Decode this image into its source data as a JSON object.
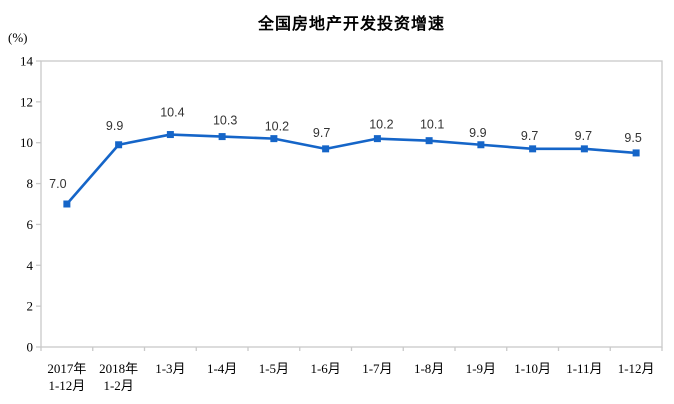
{
  "chart_data": {
    "type": "line",
    "title": "全国房地产开发投资增速",
    "ylabel": "(%)",
    "xlabel": "",
    "categories": [
      [
        "2017年",
        "1-12月"
      ],
      [
        "2018年",
        "1-2月"
      ],
      [
        "1-3月"
      ],
      [
        "1-4月"
      ],
      [
        "1-5月"
      ],
      [
        "1-6月"
      ],
      [
        "1-7月"
      ],
      [
        "1-8月"
      ],
      [
        "1-9月"
      ],
      [
        "1-10月"
      ],
      [
        "1-11月"
      ],
      [
        "1-12月"
      ]
    ],
    "values": [
      7.0,
      9.9,
      10.4,
      10.3,
      10.2,
      9.7,
      10.2,
      10.1,
      9.9,
      9.7,
      9.7,
      9.5
    ],
    "point_labels": [
      "7.0",
      "9.9",
      "10.4",
      "10.3",
      "10.2",
      "9.7",
      "10.2",
      "10.1",
      "9.9",
      "9.7",
      "9.7",
      "9.5"
    ],
    "ylim": [
      0,
      14
    ],
    "yticks": [
      0,
      2,
      4,
      6,
      8,
      10,
      12,
      14
    ],
    "grid": false,
    "legend": "none",
    "marker": "square",
    "colors": {
      "line": "#1565C8",
      "marker": "#1565C8",
      "axis": "#C9C9C9",
      "point_label_text": "#333333",
      "tick_text": "#000000",
      "title_text": "#000000",
      "background": "#FFFFFF"
    }
  }
}
